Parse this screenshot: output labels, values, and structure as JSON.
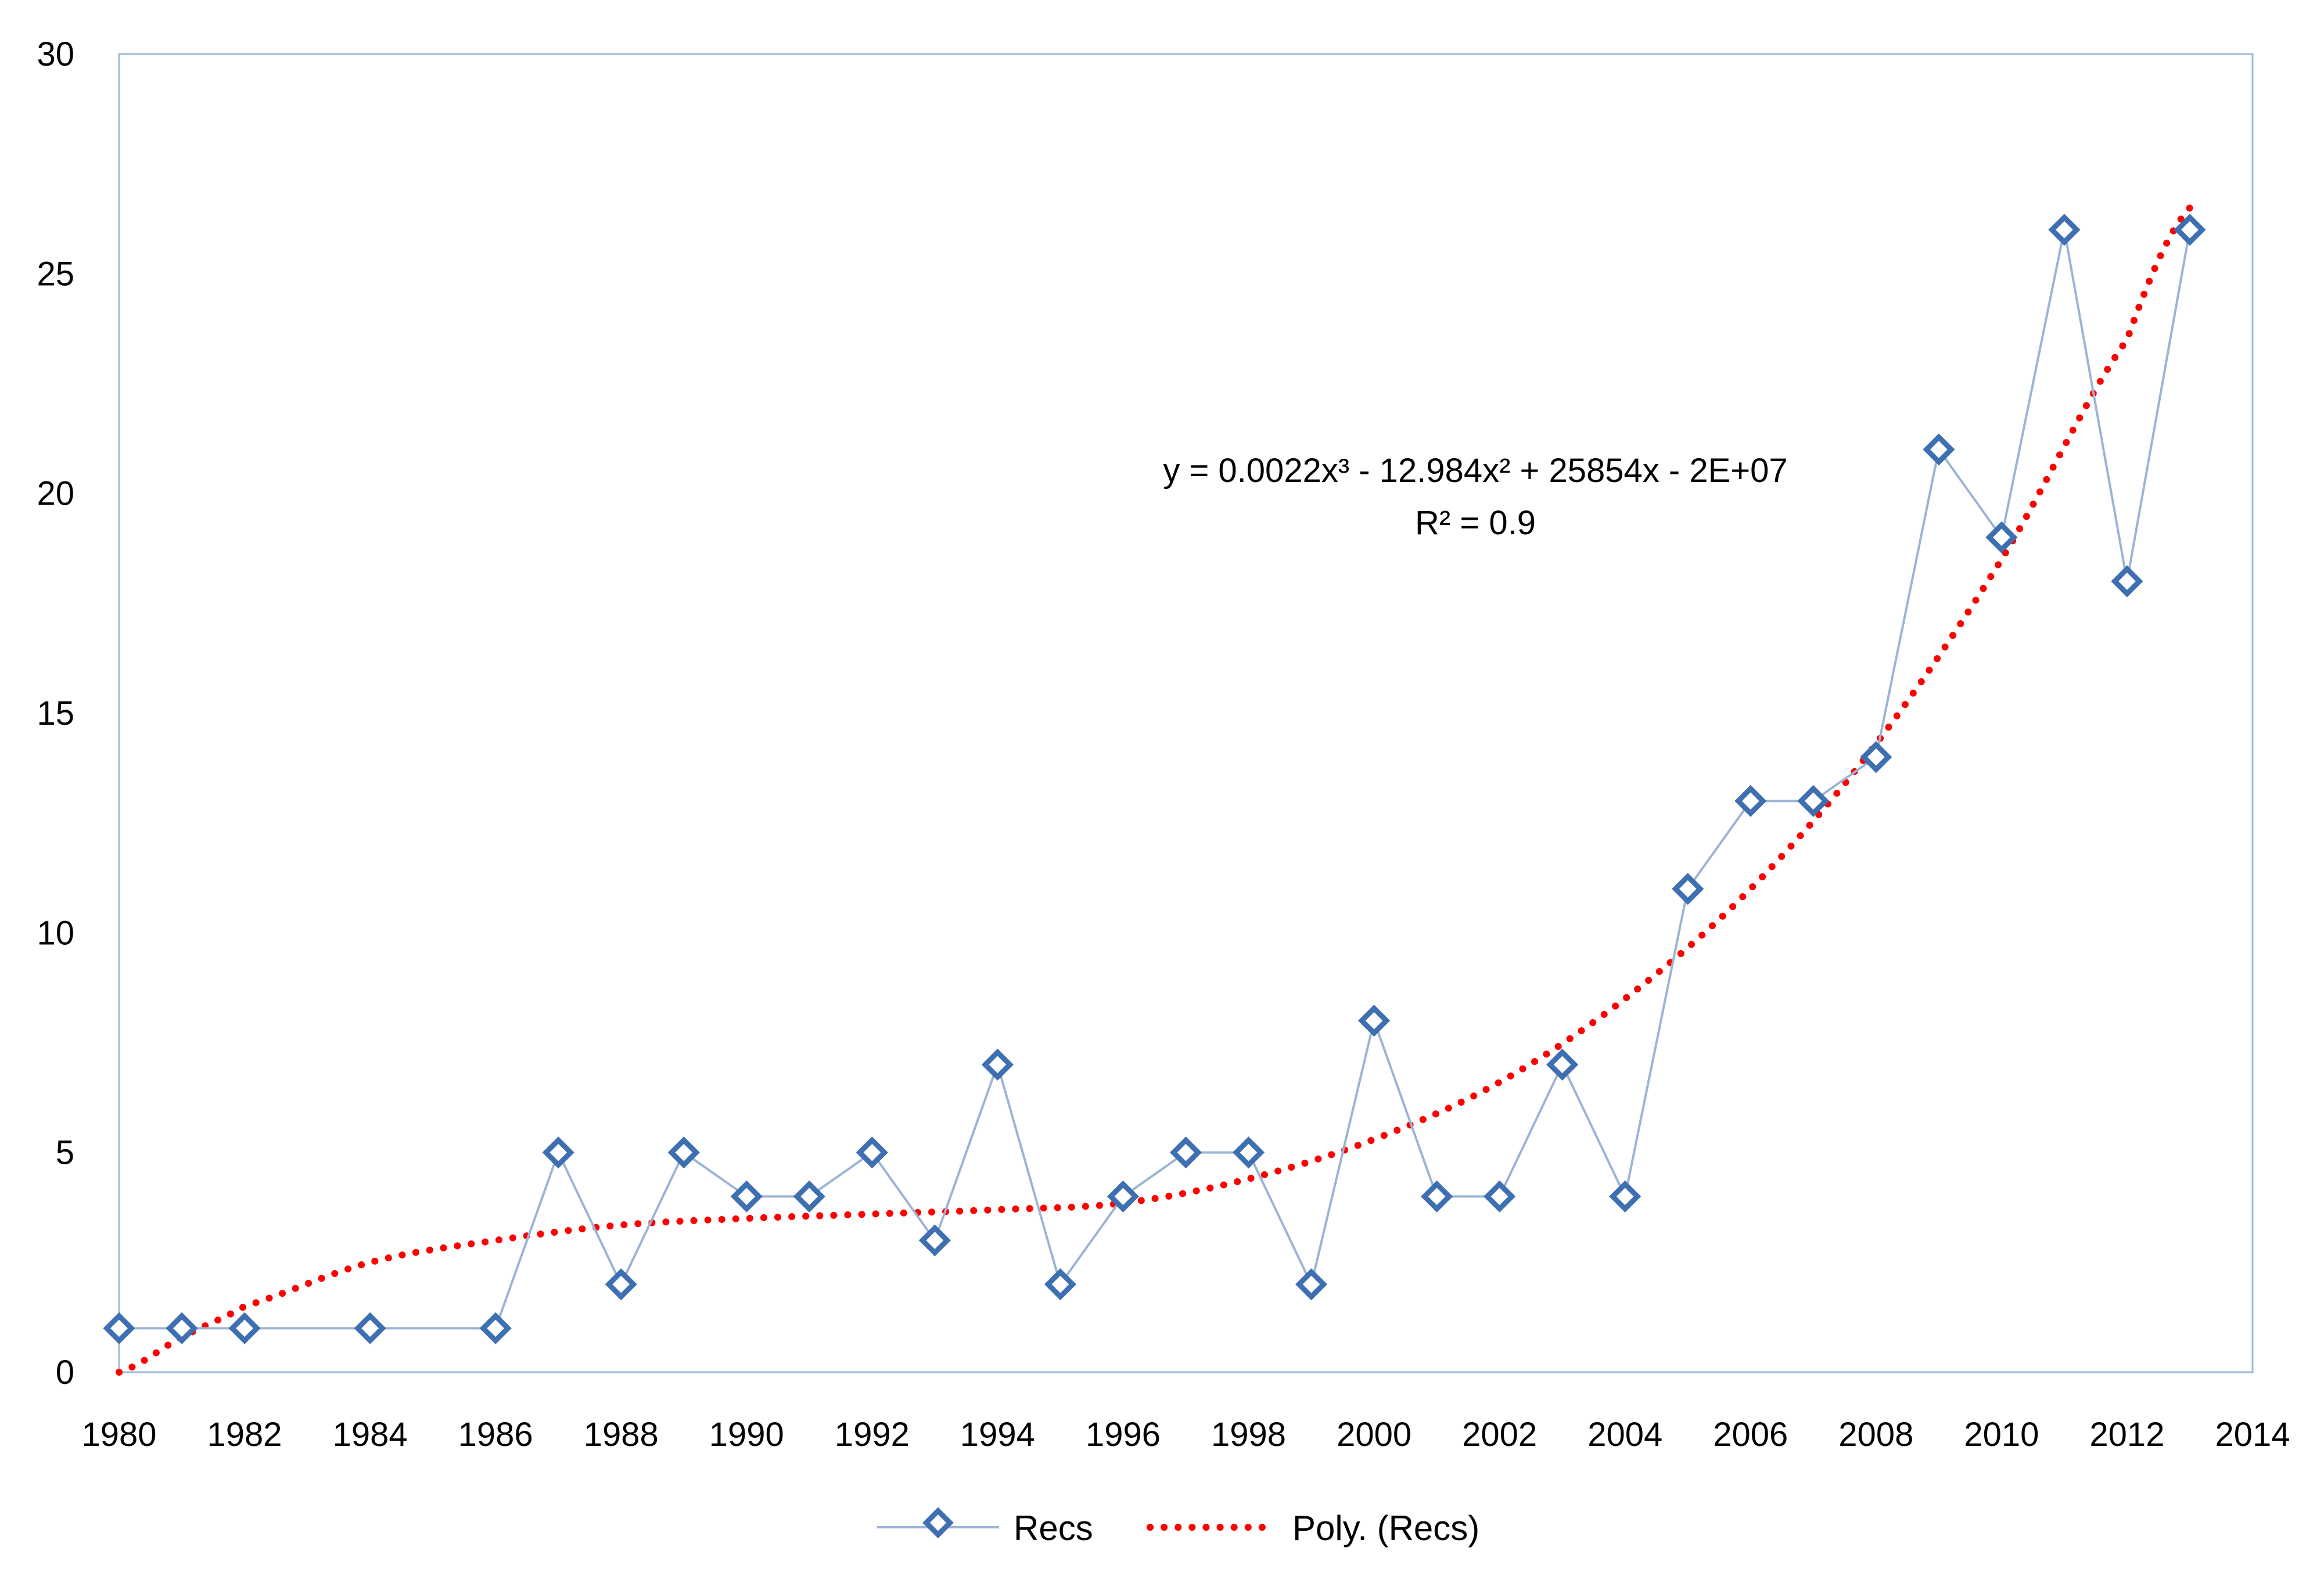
{
  "chart_data": {
    "type": "line",
    "x": [
      1980,
      1981,
      1982,
      1984,
      1986,
      1987,
      1988,
      1989,
      1990,
      1991,
      1992,
      1993,
      1994,
      1995,
      1996,
      1997,
      1998,
      1999,
      2000,
      2001,
      2002,
      2003,
      2004,
      2005,
      2006,
      2007,
      2008,
      2009,
      2010,
      2011,
      2012,
      2013
    ],
    "series": [
      {
        "name": "Recs",
        "values": [
          1,
          1,
          1,
          1,
          1,
          5,
          2,
          5,
          4,
          4,
          5,
          3,
          7,
          2,
          4,
          5,
          5,
          2,
          8,
          4,
          4,
          7,
          4,
          11,
          13,
          13,
          14,
          21,
          19,
          26,
          18,
          26
        ],
        "color": "#9BB4D6",
        "marker": "diamond",
        "marker_color": "#3E6FB0"
      }
    ],
    "trendline": {
      "name": "Poly. (Recs)",
      "type": "polynomial",
      "order": 3,
      "color": "#FF0000",
      "style": "dotted",
      "x_range": [
        1980,
        2013
      ],
      "fit_values": {
        "1980": 0.0,
        "1981": 0.8,
        "1982": 1.5,
        "1984": 2.5,
        "1986": 3.0,
        "1988": 3.35,
        "1990": 3.5,
        "1992": 3.6,
        "1994": 3.7,
        "1996": 3.85,
        "1998": 4.4,
        "2000": 5.3,
        "2002": 6.6,
        "2004": 8.5,
        "2006": 11.0,
        "2008": 14.3,
        "2010": 18.5,
        "2012": 23.5,
        "2013": 26.5
      }
    },
    "equation_label": {
      "line1": "y = 0.0022x³ - 12.984x² + 25854x - 2E+07",
      "line2": "R² = 0.9"
    },
    "xlim": [
      1980,
      2014
    ],
    "ylim": [
      0,
      30
    ],
    "xticks": [
      1980,
      1982,
      1984,
      1986,
      1988,
      1990,
      1992,
      1994,
      1996,
      1998,
      2000,
      2002,
      2004,
      2006,
      2008,
      2010,
      2012,
      2014
    ],
    "yticks": [
      0,
      5,
      10,
      15,
      20,
      25,
      30
    ],
    "grid": false,
    "legend": {
      "placement": "bottom",
      "entries": [
        "Recs",
        "Poly. (Recs)"
      ]
    }
  }
}
